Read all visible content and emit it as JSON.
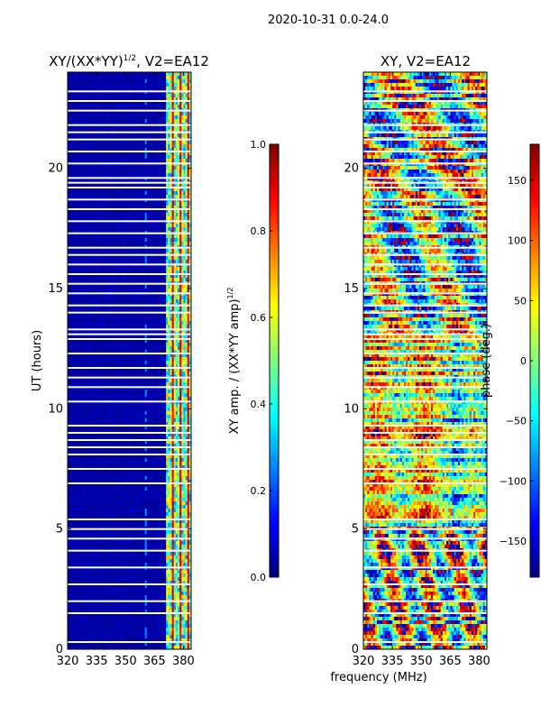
{
  "figure_title": "2020-10-31 0.0-24.0",
  "colors": {
    "jet": [
      "#00007f",
      "#0000ff",
      "#007fff",
      "#00ffff",
      "#7fff7f",
      "#ffff00",
      "#ff7f00",
      "#ff0000",
      "#7f0000"
    ]
  },
  "chart_data": [
    {
      "type": "heatmap",
      "title_main": "XY/(XX*YY)",
      "title_sup": "1/2",
      "title_tail": ", V2=EA12",
      "xlabel": "",
      "ylabel": "UT (hours)",
      "xlim": [
        320,
        384
      ],
      "ylim": [
        0,
        24
      ],
      "xticks": [
        320,
        335,
        350,
        365,
        380
      ],
      "yticks": [
        0,
        5,
        10,
        15,
        20
      ],
      "colorbar": {
        "label_main": "XY amp. / (XX*YY amp)",
        "label_sup": "1/2",
        "range": [
          0.0,
          1.0
        ],
        "ticks": [
          0.0,
          0.2,
          0.4,
          0.6,
          0.8,
          1.0
        ],
        "tick_labels": [
          "0.0",
          "0.2",
          "0.4",
          "0.6",
          "0.8",
          "1.0"
        ]
      }
    },
    {
      "type": "heatmap",
      "title_main": "XY, V2=EA12",
      "title_sup": "",
      "title_tail": "",
      "xlabel": "frequency (MHz)",
      "ylabel": "",
      "xlim": [
        320,
        384
      ],
      "ylim": [
        0,
        24
      ],
      "xticks": [
        320,
        335,
        350,
        365,
        380
      ],
      "yticks": [
        0,
        5,
        10,
        15,
        20
      ],
      "colorbar": {
        "label_main": "phase (deg.)",
        "label_sup": "",
        "range": [
          -180,
          180
        ],
        "ticks": [
          -150,
          -100,
          -50,
          0,
          50,
          100,
          150
        ],
        "tick_labels": [
          "−150",
          "−100",
          "−50",
          "0",
          "50",
          "100",
          "150"
        ]
      }
    }
  ],
  "flagged_hours": [
    0.3,
    1.5,
    2.0,
    2.7,
    3.4,
    4.1,
    4.6,
    5.0,
    5.4,
    6.9,
    7.5,
    8.1,
    8.4,
    8.7,
    9.0,
    9.3,
    10.3,
    10.9,
    11.3,
    11.7,
    12.3,
    12.9,
    13.1,
    13.3,
    14.0,
    14.3,
    14.8,
    15.2,
    15.6,
    16.0,
    16.4,
    16.7,
    17.3,
    17.8,
    18.3,
    18.7,
    19.2,
    19.4,
    19.6,
    20.2,
    20.7,
    21.2,
    21.5,
    21.8,
    22.4,
    22.8,
    23.2
  ]
}
